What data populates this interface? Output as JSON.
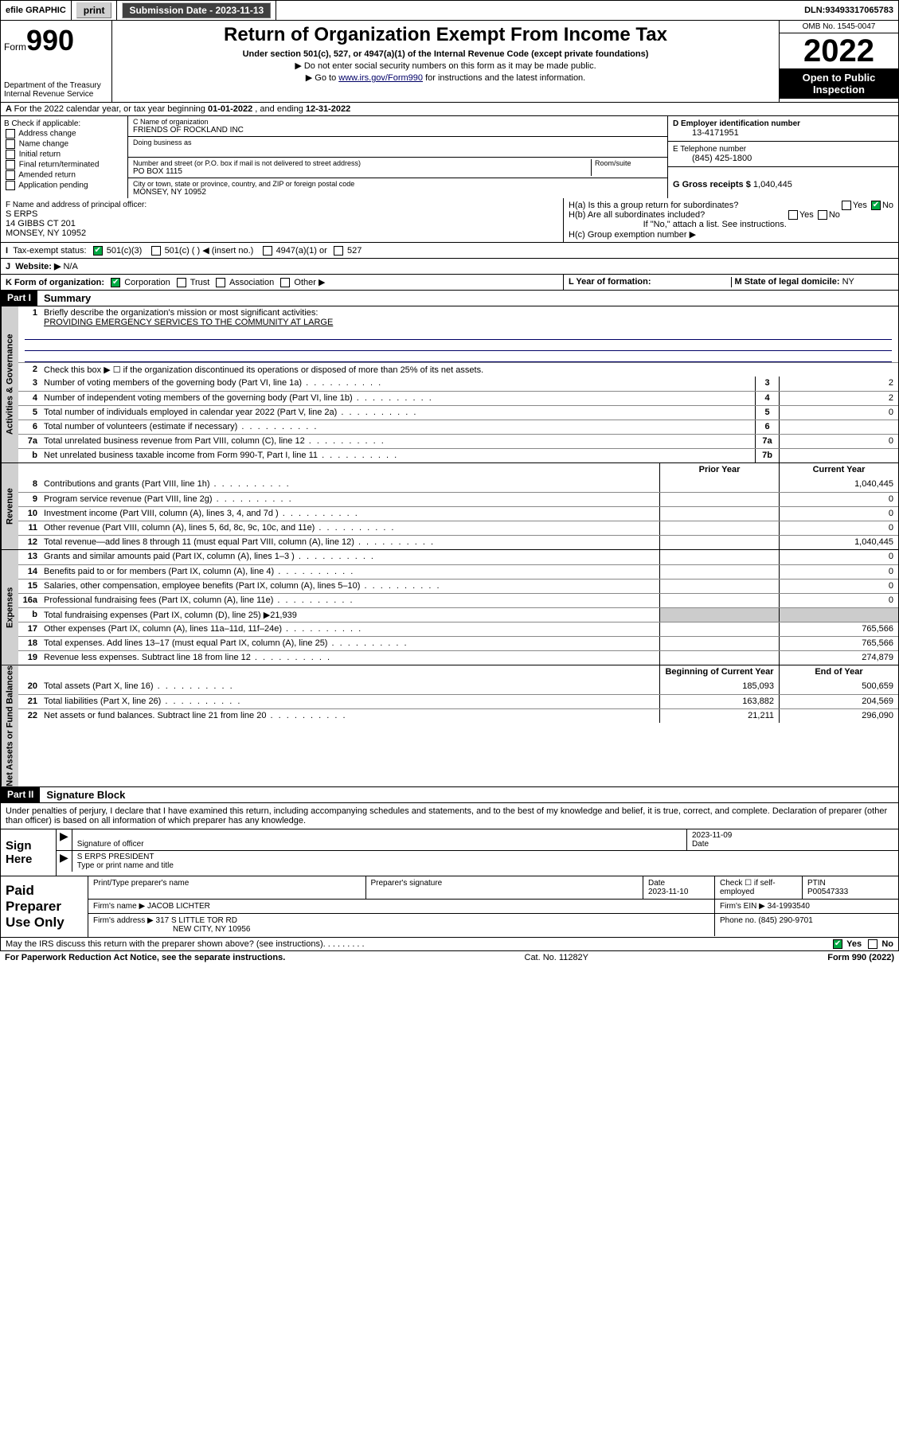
{
  "topbar": {
    "efile": "efile GRAPHIC",
    "print": "print",
    "sub_label": "Submission Date - ",
    "sub_date": "2023-11-13",
    "dln_label": "DLN: ",
    "dln": "93493317065783"
  },
  "head": {
    "form_word": "Form",
    "form_no": "990",
    "dept": "Department of the Treasury",
    "irs": "Internal Revenue Service",
    "title": "Return of Organization Exempt From Income Tax",
    "sub": "Under section 501(c), 527, or 4947(a)(1) of the Internal Revenue Code (except private foundations)",
    "note1": "▶ Do not enter social security numbers on this form as it may be made public.",
    "note2_pre": "▶ Go to ",
    "note2_link": "www.irs.gov/Form990",
    "note2_post": " for instructions and the latest information.",
    "omb": "OMB No. 1545-0047",
    "year": "2022",
    "open": "Open to Public Inspection"
  },
  "period": {
    "text_a": "For the 2022 calendar year, or tax year beginning ",
    "begin": "01-01-2022",
    "text_b": " , and ending ",
    "end": "12-31-2022"
  },
  "boxB": {
    "hdr": "B Check if applicable:",
    "items": [
      "Address change",
      "Name change",
      "Initial return",
      "Final return/terminated",
      "Amended return",
      "Application pending"
    ]
  },
  "boxC": {
    "name_lbl": "C Name of organization",
    "name": "FRIENDS OF ROCKLAND INC",
    "dba_lbl": "Doing business as",
    "addr_lbl": "Number and street (or P.O. box if mail is not delivered to street address)",
    "room_lbl": "Room/suite",
    "addr": "PO BOX 1115",
    "city_lbl": "City or town, state or province, country, and ZIP or foreign postal code",
    "city": "MONSEY, NY  10952"
  },
  "boxD": {
    "ein_lbl": "D Employer identification number",
    "ein": "13-4171951",
    "tel_lbl": "E Telephone number",
    "tel": "(845) 425-1800",
    "gross_lbl": "G Gross receipts $ ",
    "gross": "1,040,445"
  },
  "boxF": {
    "lbl": "F  Name and address of principal officer:",
    "name": "S ERPS",
    "addr1": "14 GIBBS CT 201",
    "addr2": "MONSEY, NY  10952"
  },
  "boxH": {
    "a": "H(a)  Is this a group return for subordinates?",
    "b": "H(b)  Are all subordinates included?",
    "note": "If \"No,\" attach a list. See instructions.",
    "c": "H(c)  Group exemption number ▶",
    "yes": "Yes",
    "no": "No"
  },
  "rowI": {
    "lbl": "Tax-exempt status:",
    "o1": "501(c)(3)",
    "o2": "501(c) (  ) ◀ (insert no.)",
    "o3": "4947(a)(1) or",
    "o4": "527"
  },
  "rowJ": {
    "lbl": "Website: ▶",
    "val": "N/A"
  },
  "rowK": {
    "lbl": "K Form of organization:",
    "opts": [
      "Corporation",
      "Trust",
      "Association",
      "Other ▶"
    ],
    "L": "L Year of formation:",
    "M": "M State of legal domicile: ",
    "Mval": "NY"
  },
  "part1": {
    "hdr": "Part I",
    "title": "Summary",
    "tabs": {
      "gov": "Activities & Governance",
      "rev": "Revenue",
      "exp": "Expenses",
      "net": "Net Assets or Fund Balances"
    },
    "l1": "Briefly describe the organization's mission or most significant activities:",
    "mission": "PROVIDING EMERGENCY SERVICES TO THE COMMUNITY AT LARGE",
    "l2": "Check this box ▶ ☐  if the organization discontinued its operations or disposed of more than 25% of its net assets.",
    "lines_gov": [
      {
        "n": "3",
        "t": "Number of voting members of the governing body (Part VI, line 1a)",
        "box": "3",
        "v": "2"
      },
      {
        "n": "4",
        "t": "Number of independent voting members of the governing body (Part VI, line 1b)",
        "box": "4",
        "v": "2"
      },
      {
        "n": "5",
        "t": "Total number of individuals employed in calendar year 2022 (Part V, line 2a)",
        "box": "5",
        "v": "0"
      },
      {
        "n": "6",
        "t": "Total number of volunteers (estimate if necessary)",
        "box": "6",
        "v": ""
      },
      {
        "n": "7a",
        "t": "Total unrelated business revenue from Part VIII, column (C), line 12",
        "box": "7a",
        "v": "0"
      },
      {
        "n": "b",
        "t": "Net unrelated business taxable income from Form 990-T, Part I, line 11",
        "box": "7b",
        "v": ""
      }
    ],
    "col_hdr": {
      "prior": "Prior Year",
      "cur": "Current Year"
    },
    "lines_rev": [
      {
        "n": "8",
        "t": "Contributions and grants (Part VIII, line 1h)",
        "p": "",
        "c": "1,040,445"
      },
      {
        "n": "9",
        "t": "Program service revenue (Part VIII, line 2g)",
        "p": "",
        "c": "0"
      },
      {
        "n": "10",
        "t": "Investment income (Part VIII, column (A), lines 3, 4, and 7d )",
        "p": "",
        "c": "0"
      },
      {
        "n": "11",
        "t": "Other revenue (Part VIII, column (A), lines 5, 6d, 8c, 9c, 10c, and 11e)",
        "p": "",
        "c": "0"
      },
      {
        "n": "12",
        "t": "Total revenue—add lines 8 through 11 (must equal Part VIII, column (A), line 12)",
        "p": "",
        "c": "1,040,445"
      }
    ],
    "lines_exp": [
      {
        "n": "13",
        "t": "Grants and similar amounts paid (Part IX, column (A), lines 1–3 )",
        "p": "",
        "c": "0"
      },
      {
        "n": "14",
        "t": "Benefits paid to or for members (Part IX, column (A), line 4)",
        "p": "",
        "c": "0"
      },
      {
        "n": "15",
        "t": "Salaries, other compensation, employee benefits (Part IX, column (A), lines 5–10)",
        "p": "",
        "c": "0"
      },
      {
        "n": "16a",
        "t": "Professional fundraising fees (Part IX, column (A), line 11e)",
        "p": "",
        "c": "0"
      },
      {
        "n": "b",
        "t": "Total fundraising expenses (Part IX, column (D), line 25) ▶21,939",
        "p": null,
        "c": null
      },
      {
        "n": "17",
        "t": "Other expenses (Part IX, column (A), lines 11a–11d, 11f–24e)",
        "p": "",
        "c": "765,566"
      },
      {
        "n": "18",
        "t": "Total expenses. Add lines 13–17 (must equal Part IX, column (A), line 25)",
        "p": "",
        "c": "765,566"
      },
      {
        "n": "19",
        "t": "Revenue less expenses. Subtract line 18 from line 12",
        "p": "",
        "c": "274,879"
      }
    ],
    "col_hdr2": {
      "beg": "Beginning of Current Year",
      "end": "End of Year"
    },
    "lines_net": [
      {
        "n": "20",
        "t": "Total assets (Part X, line 16)",
        "p": "185,093",
        "c": "500,659"
      },
      {
        "n": "21",
        "t": "Total liabilities (Part X, line 26)",
        "p": "163,882",
        "c": "204,569"
      },
      {
        "n": "22",
        "t": "Net assets or fund balances. Subtract line 21 from line 20",
        "p": "21,211",
        "c": "296,090"
      }
    ]
  },
  "part2": {
    "hdr": "Part II",
    "title": "Signature Block",
    "intro": "Under penalties of perjury, I declare that I have examined this return, including accompanying schedules and statements, and to the best of my knowledge and belief, it is true, correct, and complete. Declaration of preparer (other than officer) is based on all information of which preparer has any knowledge."
  },
  "sign": {
    "lbl": "Sign Here",
    "sig_lbl": "Signature of officer",
    "date_lbl": "Date",
    "date": "2023-11-09",
    "name": "S ERPS PRESIDENT",
    "name_lbl": "Type or print name and title"
  },
  "paid": {
    "lbl": "Paid Preparer Use Only",
    "h1": "Print/Type preparer's name",
    "h2": "Preparer's signature",
    "h3": "Date",
    "date": "2023-11-10",
    "h4": "Check ☐ if self-employed",
    "h5": "PTIN",
    "ptin": "P00547333",
    "firm_lbl": "Firm's name    ▶ ",
    "firm": "JACOB LICHTER",
    "ein_lbl": "Firm's EIN ▶ ",
    "ein": "34-1993540",
    "addr_lbl": "Firm's address ▶ ",
    "addr1": "317 S LITTLE TOR RD",
    "addr2": "NEW CITY, NY  10956",
    "phone_lbl": "Phone no. ",
    "phone": "(845) 290-9701"
  },
  "footer": {
    "q": "May the IRS discuss this return with the preparer shown above? (see instructions)",
    "yes": "Yes",
    "no": "No",
    "pra": "For Paperwork Reduction Act Notice, see the separate instructions.",
    "cat": "Cat. No. 11282Y",
    "form": "Form 990 (2022)"
  }
}
